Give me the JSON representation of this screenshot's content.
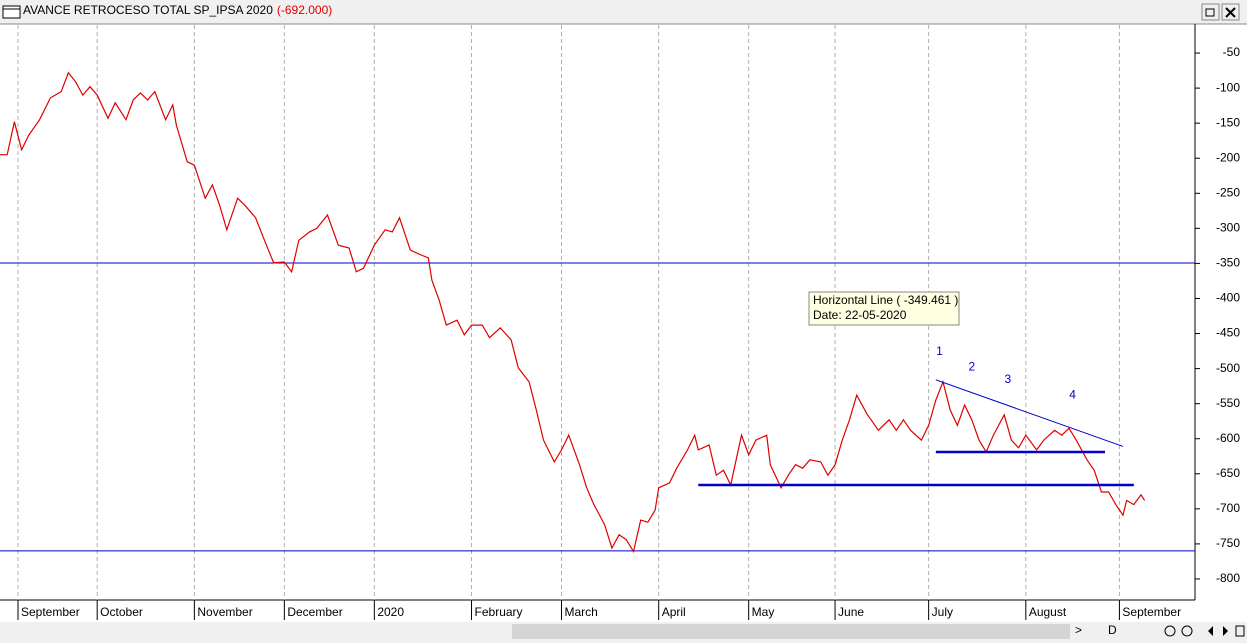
{
  "chart_data": {
    "type": "line",
    "title": "AVANCE RETROCESO TOTAL SP_IPSA 2020",
    "last_value_label": "(-692.000)",
    "x": [
      0,
      2,
      4,
      6,
      8,
      11,
      14,
      17,
      19,
      21,
      23,
      25,
      27,
      30,
      32,
      35,
      37,
      39,
      41,
      43,
      46,
      48,
      49,
      52,
      54,
      57,
      59,
      61,
      63,
      66,
      68,
      71,
      74,
      76,
      79,
      81,
      83,
      86,
      88,
      91,
      94,
      97,
      99,
      101,
      104,
      107,
      109,
      111,
      114,
      117,
      119,
      120,
      122,
      124,
      127,
      129,
      131,
      134,
      136,
      139,
      142,
      144,
      147,
      149,
      151,
      154,
      156,
      158,
      161,
      163,
      165,
      167,
      168,
      170,
      172,
      174,
      176,
      178,
      180,
      182,
      183,
      186,
      188,
      191,
      193,
      194,
      197,
      199,
      201,
      203,
      204,
      206,
      208,
      210,
      213,
      214,
      217,
      219,
      221,
      223,
      225,
      228,
      230,
      232,
      234,
      236,
      238,
      241,
      242,
      244,
      247,
      249,
      251,
      253,
      256,
      258,
      260,
      262,
      264,
      266,
      268,
      270,
      272,
      274,
      276,
      279,
      281,
      283,
      285,
      288,
      290,
      293,
      295,
      297,
      299,
      302,
      304,
      306,
      308,
      310,
      312,
      313,
      315,
      317,
      318
    ],
    "series": [
      {
        "name": "SP_IPSA",
        "color": "#e00000",
        "values": [
          -195,
          -195,
          -148,
          -188,
          -167,
          -145,
          -114,
          -105,
          -78,
          -91,
          -110,
          -98,
          -110,
          -143,
          -121,
          -145,
          -117,
          -107,
          -117,
          -105,
          -145,
          -124,
          -153,
          -205,
          -210,
          -257,
          -238,
          -267,
          -302,
          -257,
          -267,
          -285,
          -324,
          -349,
          -348,
          -362,
          -317,
          -305,
          -300,
          -281,
          -324,
          -328,
          -362,
          -357,
          -324,
          -302,
          -305,
          -285,
          -331,
          -338,
          -342,
          -374,
          -402,
          -438,
          -431,
          -452,
          -438,
          -438,
          -456,
          -442,
          -459,
          -499,
          -519,
          -559,
          -602,
          -633,
          -616,
          -595,
          -637,
          -670,
          -694,
          -713,
          -723,
          -756,
          -737,
          -744,
          -761,
          -716,
          -719,
          -702,
          -670,
          -663,
          -642,
          -616,
          -595,
          -616,
          -609,
          -652,
          -645,
          -666,
          -642,
          -595,
          -623,
          -602,
          -595,
          -637,
          -670,
          -652,
          -637,
          -642,
          -630,
          -633,
          -652,
          -637,
          -602,
          -573,
          -538,
          -566,
          -573,
          -588,
          -573,
          -588,
          -573,
          -588,
          -602,
          -581,
          -545,
          -519,
          -559,
          -581,
          -552,
          -573,
          -602,
          -619,
          -595,
          -566,
          -602,
          -613,
          -595,
          -616,
          -602,
          -588,
          -595,
          -585,
          -602,
          -630,
          -645,
          -676,
          -676,
          -694,
          -709,
          -688,
          -694,
          -680,
          -688
        ]
      }
    ],
    "xlim": [
      0,
      332
    ],
    "xticks": [
      {
        "value": 5,
        "label": "September"
      },
      {
        "value": 27,
        "label": "October"
      },
      {
        "value": 54,
        "label": "November"
      },
      {
        "value": 79,
        "label": "December"
      },
      {
        "value": 104,
        "label": "2020"
      },
      {
        "value": 131,
        "label": "February"
      },
      {
        "value": 156,
        "label": "March"
      },
      {
        "value": 183,
        "label": "April"
      },
      {
        "value": 208,
        "label": "May"
      },
      {
        "value": 232,
        "label": "June"
      },
      {
        "value": 258,
        "label": "July"
      },
      {
        "value": 285,
        "label": "August"
      },
      {
        "value": 311,
        "label": "September"
      }
    ],
    "ylim": [
      -830,
      -10
    ],
    "yticks": [
      -50,
      -100,
      -150,
      -200,
      -250,
      -300,
      -350,
      -400,
      -450,
      -500,
      -550,
      -600,
      -650,
      -700,
      -750,
      -800
    ],
    "grid": true,
    "hlines": [
      {
        "value": -349.461,
        "color": "#0000c8"
      },
      {
        "value": -760,
        "color": "#0000c8"
      }
    ],
    "segments": [
      {
        "x": [
          260,
          312
        ],
        "y": [
          -516,
          -611
        ],
        "color": "#0000c8",
        "width": 1
      },
      {
        "x": [
          260,
          307
        ],
        "y": [
          -619,
          -619
        ],
        "color": "#0000c8",
        "width": 2.5
      },
      {
        "x": [
          194,
          315
        ],
        "y": [
          -666,
          -666
        ],
        "color": "#0000c8",
        "width": 2.5
      }
    ],
    "annotations": [
      {
        "text": "1",
        "x": 261,
        "y": -476
      },
      {
        "text": "2",
        "x": 270,
        "y": -498
      },
      {
        "text": "3",
        "x": 280,
        "y": -516
      },
      {
        "text": "4",
        "x": 298,
        "y": -538
      }
    ],
    "tooltip": {
      "line1": "Horizontal Line ( -349.461 )",
      "line2": "Date: 22-05-2020"
    },
    "toolbar": [
      ">",
      "D"
    ]
  }
}
